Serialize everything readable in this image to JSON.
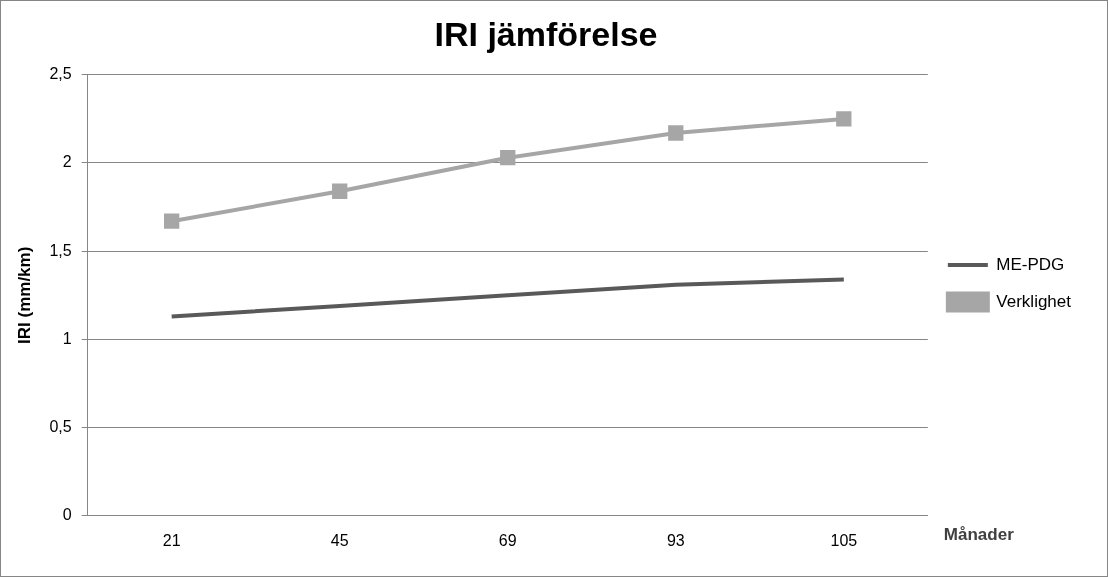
{
  "chart_data": {
    "type": "line",
    "title": "IRI jämförelse",
    "xlabel": "Månader",
    "ylabel": "IRI (mm/km)",
    "categories": [
      "21",
      "45",
      "69",
      "93",
      "105"
    ],
    "series": [
      {
        "name": "ME-PDG",
        "color": "#595959",
        "marker": "none",
        "values": [
          1.13,
          1.19,
          1.25,
          1.31,
          1.34
        ]
      },
      {
        "name": "Verklighet",
        "color": "#a6a6a6",
        "marker": "square",
        "values": [
          1.67,
          1.84,
          2.03,
          2.17,
          2.25
        ]
      }
    ],
    "ylim": [
      0,
      2.5
    ],
    "yticks": [
      0,
      {
        "value": 0.5,
        "label": "0,5"
      },
      1,
      {
        "value": 1.5,
        "label": "1,5"
      },
      2,
      {
        "value": 2.5,
        "label": "2,5"
      }
    ],
    "grid": "y",
    "legend": "right"
  }
}
